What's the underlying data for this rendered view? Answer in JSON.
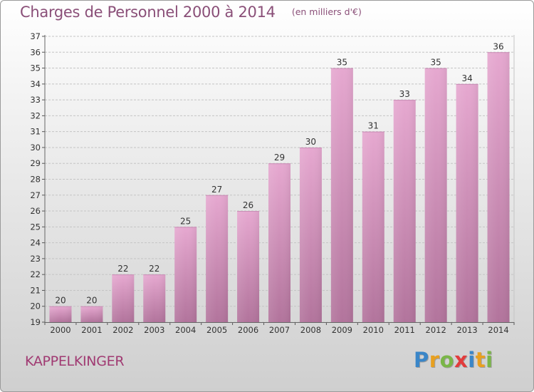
{
  "header": {
    "title": "Charges de Personnel 2000 à 2014",
    "subtitle": "(en milliers d'€)"
  },
  "footer": {
    "commune": "KAPPELKINGER",
    "logo_letters": [
      {
        "ch": "P",
        "color": "#3a86c8"
      },
      {
        "ch": "r",
        "color": "#e8a020"
      },
      {
        "ch": "o",
        "color": "#7ab648"
      },
      {
        "ch": "x",
        "color": "#e23c3c"
      },
      {
        "ch": "i",
        "color": "#3a86c8"
      },
      {
        "ch": "t",
        "color": "#e8a020"
      },
      {
        "ch": "i",
        "color": "#7ab648"
      }
    ]
  },
  "colors": {
    "bar_top": "#e6a8d0",
    "bar_bottom": "#b2749c",
    "grid": "#c4c4c4",
    "axis_text": "#333333"
  },
  "chart_data": {
    "type": "bar",
    "categories": [
      "2000",
      "2001",
      "2002",
      "2003",
      "2004",
      "2005",
      "2006",
      "2007",
      "2008",
      "2009",
      "2010",
      "2011",
      "2012",
      "2013",
      "2014"
    ],
    "values": [
      20,
      20,
      22,
      22,
      25,
      27,
      26,
      29,
      30,
      35,
      31,
      33,
      35,
      34,
      36
    ],
    "ylim": [
      19,
      37
    ],
    "yticks": [
      19,
      20,
      21,
      22,
      23,
      24,
      25,
      26,
      27,
      28,
      29,
      30,
      31,
      32,
      33,
      34,
      35,
      36,
      37
    ],
    "grid": true
  }
}
